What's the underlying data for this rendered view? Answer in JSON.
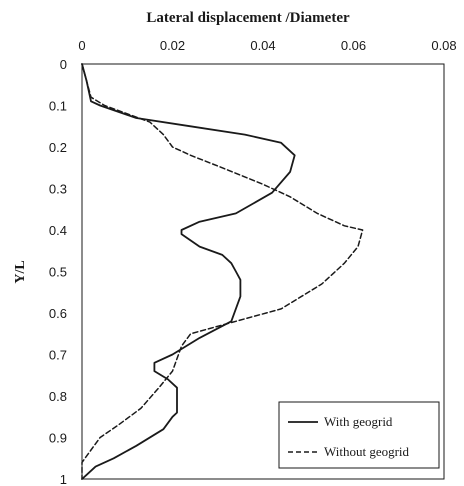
{
  "chart_data": {
    "type": "line",
    "title": "Lateral displacement /Diameter",
    "ylabel": "Y/L",
    "xlim": [
      0,
      0.08
    ],
    "ylim": [
      0,
      1
    ],
    "y_inverted": true,
    "x_axis_position": "top",
    "x_ticks": [
      "0",
      "0.02",
      "0.04",
      "0.06",
      "0.08"
    ],
    "y_ticks": [
      "0",
      "0.1",
      "0.2",
      "0.3",
      "0.4",
      "0.5",
      "0.6",
      "0.7",
      "0.8",
      "0.9",
      "1"
    ],
    "grid": false,
    "legend_position": "bottom-right",
    "series": [
      {
        "name": "With geogrid",
        "style": "solid",
        "color": "#1a1a1a",
        "points": [
          [
            0.0,
            0.0
          ],
          [
            0.001,
            0.04
          ],
          [
            0.002,
            0.09
          ],
          [
            0.004,
            0.1
          ],
          [
            0.012,
            0.13
          ],
          [
            0.024,
            0.15
          ],
          [
            0.036,
            0.17
          ],
          [
            0.044,
            0.19
          ],
          [
            0.047,
            0.22
          ],
          [
            0.046,
            0.26
          ],
          [
            0.042,
            0.31
          ],
          [
            0.034,
            0.36
          ],
          [
            0.026,
            0.38
          ],
          [
            0.022,
            0.4
          ],
          [
            0.022,
            0.41
          ],
          [
            0.026,
            0.44
          ],
          [
            0.031,
            0.46
          ],
          [
            0.033,
            0.48
          ],
          [
            0.034,
            0.5
          ],
          [
            0.035,
            0.52
          ],
          [
            0.035,
            0.56
          ],
          [
            0.033,
            0.62
          ],
          [
            0.026,
            0.66
          ],
          [
            0.02,
            0.7
          ],
          [
            0.016,
            0.72
          ],
          [
            0.016,
            0.74
          ],
          [
            0.019,
            0.76
          ],
          [
            0.021,
            0.78
          ],
          [
            0.021,
            0.82
          ],
          [
            0.021,
            0.84
          ],
          [
            0.02,
            0.85
          ],
          [
            0.018,
            0.88
          ],
          [
            0.012,
            0.92
          ],
          [
            0.007,
            0.95
          ],
          [
            0.003,
            0.97
          ],
          [
            0.001,
            0.99
          ],
          [
            0.0,
            1.0
          ]
        ]
      },
      {
        "name": "Without geogrid",
        "style": "dashed",
        "color": "#1a1a1a",
        "points": [
          [
            0.0,
            0.0
          ],
          [
            0.001,
            0.04
          ],
          [
            0.002,
            0.08
          ],
          [
            0.005,
            0.1
          ],
          [
            0.01,
            0.12
          ],
          [
            0.015,
            0.14
          ],
          [
            0.018,
            0.17
          ],
          [
            0.02,
            0.2
          ],
          [
            0.024,
            0.22
          ],
          [
            0.031,
            0.25
          ],
          [
            0.04,
            0.29
          ],
          [
            0.046,
            0.32
          ],
          [
            0.052,
            0.36
          ],
          [
            0.058,
            0.39
          ],
          [
            0.062,
            0.4
          ],
          [
            0.061,
            0.44
          ],
          [
            0.058,
            0.48
          ],
          [
            0.053,
            0.53
          ],
          [
            0.044,
            0.59
          ],
          [
            0.034,
            0.62
          ],
          [
            0.024,
            0.65
          ],
          [
            0.022,
            0.68
          ],
          [
            0.02,
            0.74
          ],
          [
            0.017,
            0.78
          ],
          [
            0.013,
            0.83
          ],
          [
            0.008,
            0.87
          ],
          [
            0.004,
            0.9
          ],
          [
            0.002,
            0.93
          ],
          [
            0.0,
            0.96
          ],
          [
            0.0,
            1.0
          ]
        ]
      }
    ]
  }
}
